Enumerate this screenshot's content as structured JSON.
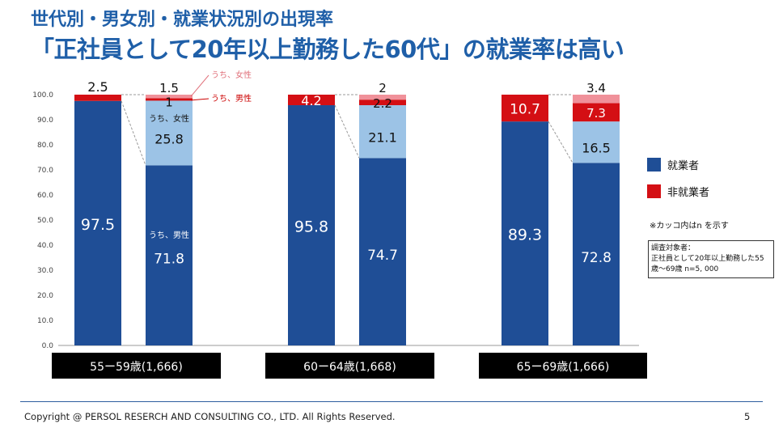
{
  "header": {
    "title_line1": "世代別・男女別・就業状況別の出現率",
    "title_line2": "「正社員として20年以上勤務した60代」の就業率は高い"
  },
  "colors": {
    "employed": "#1f4e96",
    "employed_female": "#9cc3e6",
    "nonemployed": "#d40f14",
    "nonemployed_female": "#f0919a",
    "category_box": "#000000"
  },
  "legend": {
    "employed": "就業者",
    "nonemployed": "非就業者"
  },
  "note": "※カッコ内はn を示す",
  "survey": {
    "label": "調査対象者：",
    "body": "正社員として20年以上勤務した55歳～69歳 n=5, 000"
  },
  "footer": {
    "copyright": "Copyright @ PERSOL RESERCH AND CONSULTING CO., LTD. All Rights Reserved.",
    "page": "5"
  },
  "chart_data": {
    "type": "bar",
    "stacked": true,
    "ylim": [
      0,
      100
    ],
    "yticks": [
      "0.0",
      "10.0",
      "20.0",
      "30.0",
      "40.0",
      "50.0",
      "60.0",
      "70.0",
      "80.0",
      "90.0",
      "100.0"
    ],
    "annotations": {
      "female_nonemployed": "うち、女性",
      "male_nonemployed": "うち、男性",
      "female_employed": "うち、女性",
      "male_employed": "うち、男性"
    },
    "groups": [
      {
        "category": "55ー59歳(1,666)",
        "total": {
          "employed": 97.5,
          "nonemployed": 2.5
        },
        "breakdown": {
          "male_employed": 71.8,
          "female_employed": 25.8,
          "male_nonemployed": 1.0,
          "female_nonemployed": 1.5
        }
      },
      {
        "category": "60ー64歳(1,668)",
        "total": {
          "employed": 95.8,
          "nonemployed": 4.2
        },
        "breakdown": {
          "male_employed": 74.7,
          "female_employed": 21.1,
          "male_nonemployed": 2.2,
          "female_nonemployed": 2.0
        }
      },
      {
        "category": "65ー69歳(1,666)",
        "total": {
          "employed": 89.3,
          "nonemployed": 10.7
        },
        "breakdown": {
          "male_employed": 72.8,
          "female_employed": 16.5,
          "male_nonemployed": 7.3,
          "female_nonemployed": 3.4
        }
      }
    ]
  }
}
